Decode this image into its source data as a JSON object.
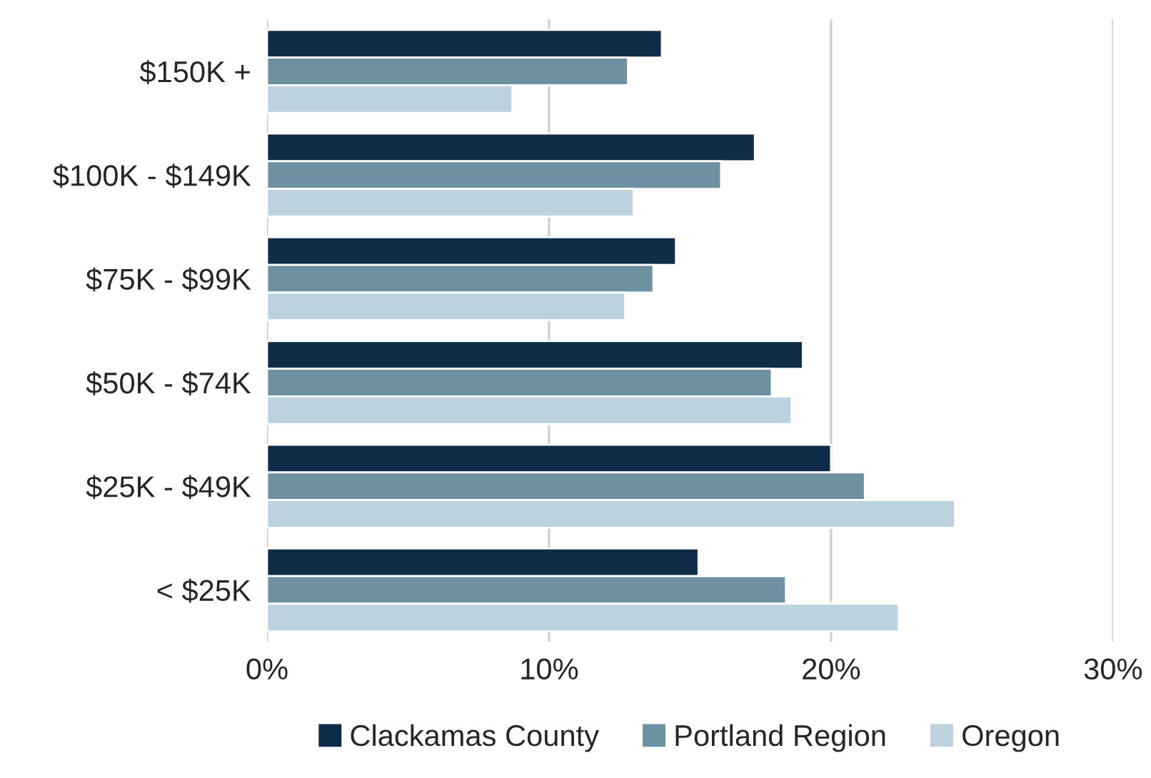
{
  "chart_data": {
    "type": "bar",
    "orientation": "horizontal",
    "categories": [
      "$150K +",
      "$100K - $149K",
      "$75K - $99K",
      "$50K - $74K",
      "$25K - $49K",
      "< $25K"
    ],
    "series": [
      {
        "name": "Clackamas County",
        "color": "#0f2d48",
        "values": [
          14.0,
          17.3,
          14.5,
          19.0,
          20.0,
          15.3
        ]
      },
      {
        "name": "Portland Region",
        "color": "#6e91a1",
        "values": [
          12.8,
          16.1,
          13.7,
          17.9,
          21.2,
          18.4
        ]
      },
      {
        "name": "Oregon",
        "color": "#bcd2df",
        "values": [
          8.7,
          13.0,
          12.7,
          18.6,
          24.4,
          22.4
        ]
      }
    ],
    "xlim": [
      0,
      30
    ],
    "xticks": [
      {
        "value": 0,
        "label": "0%"
      },
      {
        "value": 10,
        "label": "10%"
      },
      {
        "value": 20,
        "label": "20%"
      },
      {
        "value": 30,
        "label": "30%"
      }
    ],
    "grid": "x",
    "legend": "bottom"
  }
}
